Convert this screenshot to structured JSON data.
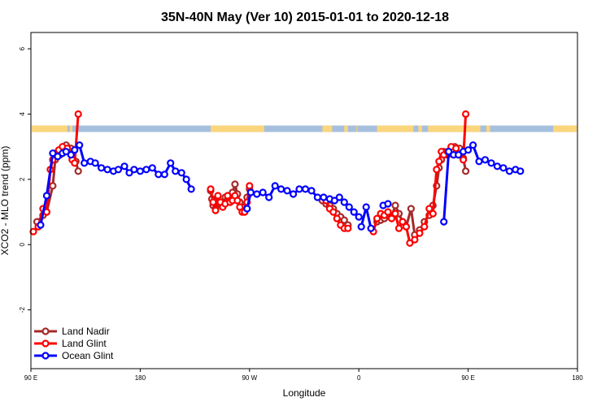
{
  "chart_data": {
    "type": "line",
    "title": "35N-40N May (Ver 10)   2015-01-01 to 2020-12-18",
    "xlabel": "Longitude",
    "ylabel": "XCO2 - MLO trend (ppm)",
    "x_ticks": [
      {
        "value": 90,
        "label": "90 E"
      },
      {
        "value": 180,
        "label": "180"
      },
      {
        "value": 270,
        "label": "90 W"
      },
      {
        "value": 360,
        "label": "0"
      },
      {
        "value": 450,
        "label": "90 E"
      },
      {
        "value": 540,
        "label": "180"
      }
    ],
    "y_ticks": [
      {
        "value": -2,
        "label": "-2"
      },
      {
        "value": 0,
        "label": "0"
      },
      {
        "value": 2,
        "label": "2"
      },
      {
        "value": 4,
        "label": "4"
      },
      {
        "value": 6,
        "label": "6"
      }
    ],
    "xlim": [
      90,
      540
    ],
    "ylim": [
      -3.8,
      6.5
    ],
    "grid": false,
    "legend_position": "bottom-left",
    "surface_strip": {
      "y_range": [
        3.45,
        3.65
      ],
      "ocean_color": "#a7bfdf",
      "land_color": "#fbd67c",
      "land_segments": [
        [
          90,
          120
        ],
        [
          122,
          124
        ],
        [
          238,
          282
        ],
        [
          330,
          338
        ],
        [
          348,
          351
        ],
        [
          358,
          358.5
        ],
        [
          375,
          405
        ],
        [
          409,
          412
        ],
        [
          417,
          460
        ],
        [
          465,
          468
        ],
        [
          520,
          540
        ]
      ]
    },
    "series": [
      {
        "name": "Land Nadir",
        "color": "#a52a2a",
        "segments": [
          [
            [
              95,
              0.7
            ],
            [
              100,
              0.9
            ],
            [
              103,
              1.0
            ],
            [
              108,
              1.8
            ],
            [
              110,
              2.6
            ],
            [
              114,
              2.75
            ],
            [
              116,
              2.9
            ],
            [
              119,
              3.05
            ],
            [
              123,
              2.95
            ],
            [
              127,
              2.55
            ],
            [
              129,
              2.25
            ]
          ],
          [
            [
              238,
              1.65
            ],
            [
              239,
              1.4
            ],
            [
              240,
              1.2
            ],
            [
              242,
              1.1
            ],
            [
              244,
              1.35
            ],
            [
              246,
              1.25
            ],
            [
              248,
              1.3
            ],
            [
              250,
              1.45
            ],
            [
              252,
              1.4
            ],
            [
              254,
              1.3
            ],
            [
              256,
              1.6
            ],
            [
              258,
              1.85
            ],
            [
              260,
              1.55
            ],
            [
              262,
              1.3
            ],
            [
              264,
              1.15
            ],
            [
              266,
              1.05
            ],
            [
              268,
              1.45
            ],
            [
              270,
              1.7
            ]
          ],
          [
            [
              330,
              1.35
            ],
            [
              333,
              1.25
            ],
            [
              336,
              1.2
            ],
            [
              339,
              1.1
            ],
            [
              342,
              0.95
            ],
            [
              345,
              0.85
            ],
            [
              348,
              0.75
            ],
            [
              351,
              0.6
            ]
          ],
          [
            [
              375,
              0.7
            ],
            [
              378,
              0.75
            ],
            [
              381,
              0.8
            ],
            [
              384,
              1.0
            ],
            [
              387,
              0.85
            ],
            [
              390,
              1.2
            ],
            [
              393,
              0.95
            ],
            [
              396,
              0.7
            ],
            [
              399,
              0.55
            ],
            [
              403,
              1.1
            ],
            [
              406,
              0.3
            ],
            [
              410,
              0.45
            ],
            [
              414,
              0.7
            ],
            [
              418,
              0.9
            ],
            [
              421,
              1.2
            ],
            [
              424,
              1.8
            ],
            [
              426,
              2.35
            ],
            [
              428,
              2.6
            ],
            [
              430,
              2.85
            ],
            [
              433,
              2.75
            ],
            [
              436,
              2.9
            ],
            [
              439,
              3.0
            ],
            [
              443,
              2.95
            ],
            [
              446,
              2.65
            ],
            [
              448,
              2.25
            ]
          ]
        ]
      },
      {
        "name": "Land Glint",
        "color": "#ff0000",
        "segments": [
          [
            [
              92,
              0.4
            ],
            [
              96,
              0.55
            ],
            [
              100,
              1.1
            ],
            [
              103,
              1.0
            ],
            [
              106,
              2.3
            ],
            [
              108,
              2.6
            ],
            [
              110,
              2.8
            ],
            [
              113,
              2.9
            ],
            [
              116,
              3.0
            ],
            [
              118,
              2.85
            ],
            [
              120,
              2.95
            ],
            [
              124,
              2.6
            ],
            [
              126,
              2.5
            ],
            [
              129,
              4.0
            ]
          ],
          [
            [
              238,
              1.7
            ],
            [
              240,
              1.3
            ],
            [
              242,
              1.05
            ],
            [
              244,
              1.5
            ],
            [
              246,
              1.3
            ],
            [
              248,
              1.15
            ],
            [
              250,
              1.25
            ],
            [
              252,
              1.5
            ],
            [
              254,
              1.3
            ],
            [
              256,
              1.35
            ],
            [
              258,
              1.5
            ],
            [
              260,
              1.35
            ],
            [
              262,
              1.15
            ],
            [
              264,
              1.0
            ],
            [
              266,
              1.0
            ],
            [
              268,
              1.3
            ],
            [
              270,
              1.8
            ]
          ],
          [
            [
              333,
              1.35
            ],
            [
              336,
              1.1
            ],
            [
              339,
              1.0
            ],
            [
              342,
              0.8
            ],
            [
              345,
              0.6
            ],
            [
              348,
              0.5
            ],
            [
              351,
              0.5
            ]
          ],
          [
            [
              372,
              0.4
            ],
            [
              375,
              0.8
            ],
            [
              378,
              0.95
            ],
            [
              381,
              0.9
            ],
            [
              384,
              1.0
            ],
            [
              387,
              0.8
            ],
            [
              390,
              0.95
            ],
            [
              393,
              0.5
            ],
            [
              396,
              0.7
            ],
            [
              399,
              0.55
            ],
            [
              402,
              0.05
            ],
            [
              406,
              0.15
            ],
            [
              410,
              0.35
            ],
            [
              414,
              0.55
            ],
            [
              418,
              1.1
            ],
            [
              421,
              0.95
            ],
            [
              424,
              2.3
            ],
            [
              426,
              2.55
            ],
            [
              428,
              2.85
            ],
            [
              430,
              2.75
            ],
            [
              433,
              2.85
            ],
            [
              436,
              3.0
            ],
            [
              440,
              2.95
            ],
            [
              443,
              2.75
            ],
            [
              446,
              2.6
            ],
            [
              448,
              4.0
            ]
          ]
        ]
      },
      {
        "name": "Ocean Glint",
        "color": "#0000ff",
        "segments": [
          [
            [
              98,
              0.6
            ],
            [
              103,
              1.5
            ],
            [
              108,
              2.8
            ],
            [
              112,
              2.7
            ],
            [
              116,
              2.8
            ],
            [
              119,
              2.85
            ],
            [
              123,
              2.75
            ],
            [
              126,
              2.9
            ],
            [
              130,
              3.05
            ],
            [
              134,
              2.5
            ],
            [
              139,
              2.55
            ],
            [
              143,
              2.5
            ],
            [
              148,
              2.35
            ],
            [
              153,
              2.3
            ],
            [
              158,
              2.25
            ],
            [
              162,
              2.3
            ],
            [
              167,
              2.4
            ],
            [
              171,
              2.2
            ],
            [
              175,
              2.3
            ],
            [
              180,
              2.25
            ],
            [
              185,
              2.3
            ],
            [
              190,
              2.35
            ],
            [
              195,
              2.15
            ],
            [
              200,
              2.15
            ],
            [
              205,
              2.5
            ],
            [
              209,
              2.25
            ],
            [
              214,
              2.2
            ],
            [
              218,
              2.0
            ],
            [
              222,
              1.7
            ]
          ],
          [
            [
              268,
              1.1
            ],
            [
              271,
              1.6
            ],
            [
              276,
              1.55
            ],
            [
              281,
              1.6
            ],
            [
              286,
              1.45
            ],
            [
              291,
              1.8
            ],
            [
              296,
              1.7
            ],
            [
              301,
              1.65
            ],
            [
              306,
              1.55
            ],
            [
              311,
              1.7
            ],
            [
              316,
              1.7
            ],
            [
              321,
              1.65
            ],
            [
              326,
              1.45
            ],
            [
              331,
              1.45
            ],
            [
              336,
              1.4
            ],
            [
              340,
              1.35
            ],
            [
              344,
              1.45
            ],
            [
              348,
              1.3
            ],
            [
              352,
              1.15
            ],
            [
              356,
              1.0
            ],
            [
              360,
              0.85
            ]
          ],
          [
            [
              362,
              0.55
            ],
            [
              366,
              1.15
            ],
            [
              370,
              0.5
            ]
          ],
          [
            [
              380,
              1.2
            ],
            [
              384,
              1.25
            ]
          ],
          [
            [
              430,
              0.7
            ],
            [
              434,
              2.85
            ],
            [
              438,
              2.75
            ],
            [
              442,
              2.75
            ],
            [
              446,
              2.85
            ],
            [
              450,
              2.9
            ],
            [
              454,
              3.05
            ],
            [
              459,
              2.55
            ],
            [
              464,
              2.6
            ],
            [
              469,
              2.5
            ],
            [
              474,
              2.4
            ],
            [
              479,
              2.35
            ],
            [
              484,
              2.25
            ],
            [
              489,
              2.3
            ],
            [
              493,
              2.25
            ]
          ]
        ]
      }
    ]
  }
}
